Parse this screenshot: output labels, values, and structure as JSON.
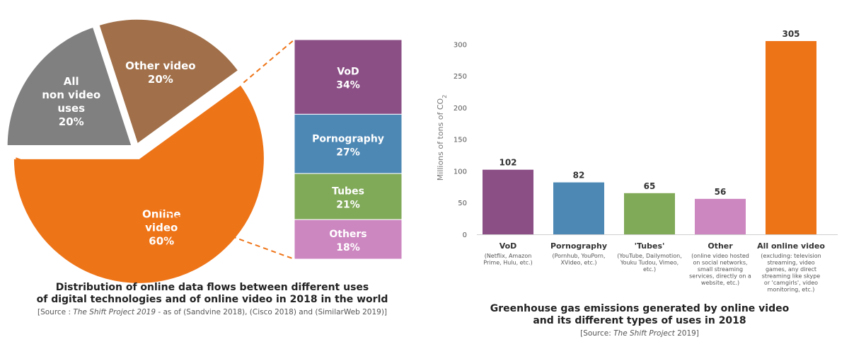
{
  "colors": {
    "online": "#ee7418",
    "non_video": "#808080",
    "other_video": "#a1704a",
    "vod": "#8b4f86",
    "porn": "#4d88b5",
    "tubes": "#80a958",
    "others": "#cc86c0",
    "dash": "#ee7418"
  },
  "chart_data": [
    {
      "type": "pie",
      "title": "Distribution of online data flows between different uses of digital technologies and of online video in 2018 in the world",
      "slices": [
        {
          "name": "Online video",
          "label_lines": [
            "Online",
            "video",
            "60%"
          ],
          "value": 60,
          "color_key": "online"
        },
        {
          "name": "All non video uses",
          "label_lines": [
            "All",
            "non video",
            "uses",
            "20%"
          ],
          "value": 20,
          "color_key": "non_video"
        },
        {
          "name": "Other video",
          "label_lines": [
            "Other video",
            "20%"
          ],
          "value": 20,
          "color_key": "other_video"
        }
      ],
      "breakdown_of": "Online video",
      "breakdown": [
        {
          "name": "VoD",
          "pct": "34%",
          "value": 34,
          "color_key": "vod"
        },
        {
          "name": "Pornography",
          "pct": "27%",
          "value": 27,
          "color_key": "porn"
        },
        {
          "name": "Tubes",
          "pct": "21%",
          "value": 21,
          "color_key": "tubes"
        },
        {
          "name": "Others",
          "pct": "18%",
          "value": 18,
          "color_key": "others"
        }
      ]
    },
    {
      "type": "bar",
      "title": "Greenhouse gas emissions generated by online video and its different types of uses in 2018",
      "ylabel": "Millions of tons of CO2",
      "ylim": [
        0,
        305
      ],
      "yticks": [
        0,
        50,
        100,
        150,
        200,
        250,
        300
      ],
      "bars": [
        {
          "name": "VoD",
          "value": 102,
          "color_key": "vod",
          "sub": [
            "(Netflix, Amazon",
            "Prime, Hulu, etc.)"
          ]
        },
        {
          "name": "Pornography",
          "value": 82,
          "color_key": "porn",
          "sub": [
            "(Pornhub, YouPorn,",
            "XVideo, etc.)"
          ]
        },
        {
          "name": "'Tubes'",
          "value": 65,
          "color_key": "tubes",
          "sub": [
            "(YouTube, Dailymotion,",
            "Youku Tudou, Vimeo,",
            "etc.)"
          ]
        },
        {
          "name": "Other",
          "value": 56,
          "color_key": "others",
          "sub": [
            "(online video hosted",
            "on social networks,",
            "small streaming",
            "services, directly on a",
            "website, etc.)"
          ]
        },
        {
          "name": "All online video",
          "value": 305,
          "color_key": "online",
          "sub": [
            "(excluding: television",
            "streaming, video",
            "games, any direct",
            "streaming like skype",
            "or 'camgirls', video",
            "monitoring, etc.)"
          ]
        }
      ]
    }
  ],
  "captions": {
    "left_title_1": "Distribution of online data flows between different uses",
    "left_title_2": "of digital technologies and of online video in 2018 in the world",
    "left_src_pre": "[Source : ",
    "left_src_it": "The Shift Project 2019",
    "left_src_post": " - as of (Sandvine 2018), (Cisco 2018) and (SimilarWeb 2019)]",
    "right_title_1": "Greenhouse gas emissions generated by online video",
    "right_title_2": "and its different types of uses in 2018",
    "right_src_pre": "[Source: ",
    "right_src_it": "The Shift Project",
    "right_src_post": " 2019]"
  }
}
